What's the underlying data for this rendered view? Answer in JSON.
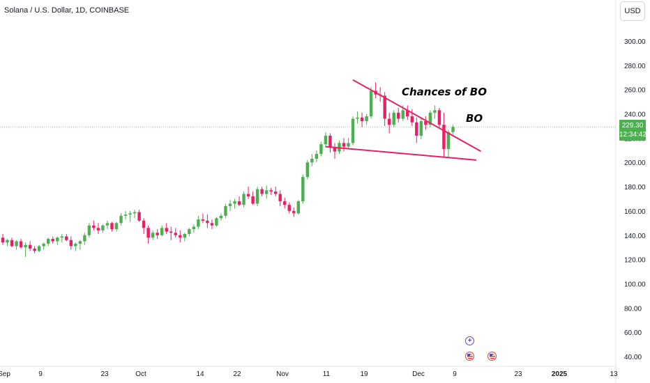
{
  "header": {
    "title": "Solana / U.S. Dollar, 1D, COINBASE",
    "currency": "USD"
  },
  "price_tag": {
    "price": "229.30",
    "countdown": "12:34:42"
  },
  "annotations": {
    "chances": "Chances of BO",
    "bo": "BO"
  },
  "colors": {
    "up": "#4caf50",
    "down": "#e91e63",
    "trendline": "#e91e63",
    "price_line": "#4caf50"
  },
  "events": [
    {
      "icon": "plus-circle-icon"
    },
    {
      "icon": "us-flag-icon"
    },
    {
      "icon": "us-flag-icon"
    }
  ],
  "chart_data": {
    "type": "candlestick",
    "title": "Solana / U.S. Dollar, 1D, COINBASE",
    "ylim": [
      30,
      320
    ],
    "y_ticks": [
      "300.00",
      "280.00",
      "260.00",
      "240.00",
      "220.00",
      "200.00",
      "180.00",
      "160.00",
      "140.00",
      "120.00",
      "100.00",
      "80.00",
      "60.00",
      "40.00"
    ],
    "x_ticks": [
      "Sep",
      "9",
      "23",
      "Oct",
      "14",
      "22",
      "Nov",
      "11",
      "19",
      "Dec",
      "9",
      "23",
      "2025",
      "13"
    ],
    "last_price": 229.3,
    "candles": [
      [
        138,
        141,
        132,
        134
      ],
      [
        134,
        137,
        131,
        136
      ],
      [
        136,
        138,
        130,
        131
      ],
      [
        131,
        136,
        128,
        135
      ],
      [
        135,
        137,
        129,
        130
      ],
      [
        130,
        134,
        122,
        132
      ],
      [
        132,
        135,
        127,
        129
      ],
      [
        129,
        131,
        125,
        127
      ],
      [
        127,
        132,
        126,
        131
      ],
      [
        131,
        134,
        128,
        133
      ],
      [
        133,
        138,
        131,
        137
      ],
      [
        137,
        139,
        133,
        135
      ],
      [
        135,
        139,
        132,
        138
      ],
      [
        138,
        141,
        134,
        139
      ],
      [
        139,
        141,
        135,
        136
      ],
      [
        136,
        139,
        128,
        131
      ],
      [
        131,
        134,
        127,
        133
      ],
      [
        133,
        136,
        128,
        135
      ],
      [
        135,
        142,
        132,
        140
      ],
      [
        140,
        150,
        138,
        148
      ],
      [
        148,
        152,
        144,
        146
      ],
      [
        146,
        150,
        141,
        144
      ],
      [
        144,
        149,
        142,
        148
      ],
      [
        148,
        152,
        145,
        150
      ],
      [
        150,
        151,
        143,
        145
      ],
      [
        145,
        151,
        143,
        150
      ],
      [
        150,
        158,
        148,
        156
      ],
      [
        156,
        160,
        153,
        157
      ],
      [
        157,
        160,
        151,
        158
      ],
      [
        158,
        161,
        154,
        159
      ],
      [
        159,
        161,
        151,
        152
      ],
      [
        152,
        154,
        141,
        146
      ],
      [
        146,
        148,
        133,
        138
      ],
      [
        138,
        144,
        136,
        142
      ],
      [
        142,
        145,
        137,
        140
      ],
      [
        140,
        148,
        139,
        146
      ],
      [
        146,
        150,
        141,
        143
      ],
      [
        143,
        147,
        136,
        142
      ],
      [
        142,
        146,
        138,
        140
      ],
      [
        140,
        144,
        134,
        138
      ],
      [
        138,
        142,
        135,
        141
      ],
      [
        141,
        146,
        139,
        145
      ],
      [
        145,
        149,
        142,
        147
      ],
      [
        147,
        156,
        145,
        153
      ],
      [
        153,
        158,
        150,
        152
      ],
      [
        152,
        157,
        146,
        150
      ],
      [
        150,
        153,
        145,
        148
      ],
      [
        148,
        155,
        147,
        154
      ],
      [
        154,
        158,
        152,
        156
      ],
      [
        156,
        166,
        154,
        164
      ],
      [
        164,
        169,
        160,
        166
      ],
      [
        166,
        170,
        162,
        168
      ],
      [
        168,
        172,
        164,
        165
      ],
      [
        165,
        176,
        163,
        174
      ],
      [
        174,
        180,
        170,
        172
      ],
      [
        172,
        176,
        165,
        166
      ],
      [
        166,
        180,
        164,
        178
      ],
      [
        178,
        180,
        172,
        174
      ],
      [
        174,
        181,
        170,
        177
      ],
      [
        177,
        179,
        173,
        176
      ],
      [
        176,
        180,
        172,
        174
      ],
      [
        174,
        177,
        164,
        168
      ],
      [
        168,
        171,
        162,
        165
      ],
      [
        165,
        167,
        158,
        160
      ],
      [
        160,
        163,
        155,
        158
      ],
      [
        158,
        169,
        157,
        168
      ],
      [
        168,
        190,
        166,
        188
      ],
      [
        188,
        202,
        186,
        200
      ],
      [
        200,
        207,
        197,
        203
      ],
      [
        203,
        210,
        200,
        207
      ],
      [
        207,
        217,
        205,
        215
      ],
      [
        215,
        225,
        212,
        222
      ],
      [
        222,
        224,
        208,
        212
      ],
      [
        212,
        216,
        203,
        209
      ],
      [
        209,
        218,
        207,
        216
      ],
      [
        216,
        220,
        209,
        213
      ],
      [
        213,
        220,
        211,
        216
      ],
      [
        216,
        238,
        214,
        236
      ],
      [
        236,
        242,
        232,
        237
      ],
      [
        237,
        241,
        229,
        234
      ],
      [
        234,
        240,
        231,
        238
      ],
      [
        238,
        262,
        236,
        259
      ],
      [
        259,
        266,
        253,
        256
      ],
      [
        256,
        262,
        250,
        255
      ],
      [
        255,
        258,
        230,
        236
      ],
      [
        236,
        241,
        224,
        231
      ],
      [
        231,
        243,
        229,
        241
      ],
      [
        241,
        245,
        233,
        236
      ],
      [
        236,
        247,
        234,
        243
      ],
      [
        243,
        247,
        235,
        238
      ],
      [
        238,
        244,
        230,
        233
      ],
      [
        233,
        237,
        216,
        222
      ],
      [
        222,
        236,
        219,
        234
      ],
      [
        234,
        238,
        227,
        231
      ],
      [
        231,
        243,
        229,
        241
      ],
      [
        241,
        247,
        236,
        243
      ],
      [
        243,
        245,
        229,
        231
      ],
      [
        231,
        241,
        204,
        211
      ],
      [
        211,
        227,
        204,
        225
      ],
      [
        225,
        231,
        223,
        229.3
      ]
    ],
    "trendlines": [
      {
        "name": "upper",
        "from": {
          "candle": 77,
          "price": 268
        },
        "to": {
          "candle": 99,
          "price": 222
        }
      },
      {
        "name": "lower",
        "from": {
          "candle": 71,
          "price": 213
        },
        "to": {
          "candle": 98,
          "price": 204
        }
      }
    ]
  }
}
